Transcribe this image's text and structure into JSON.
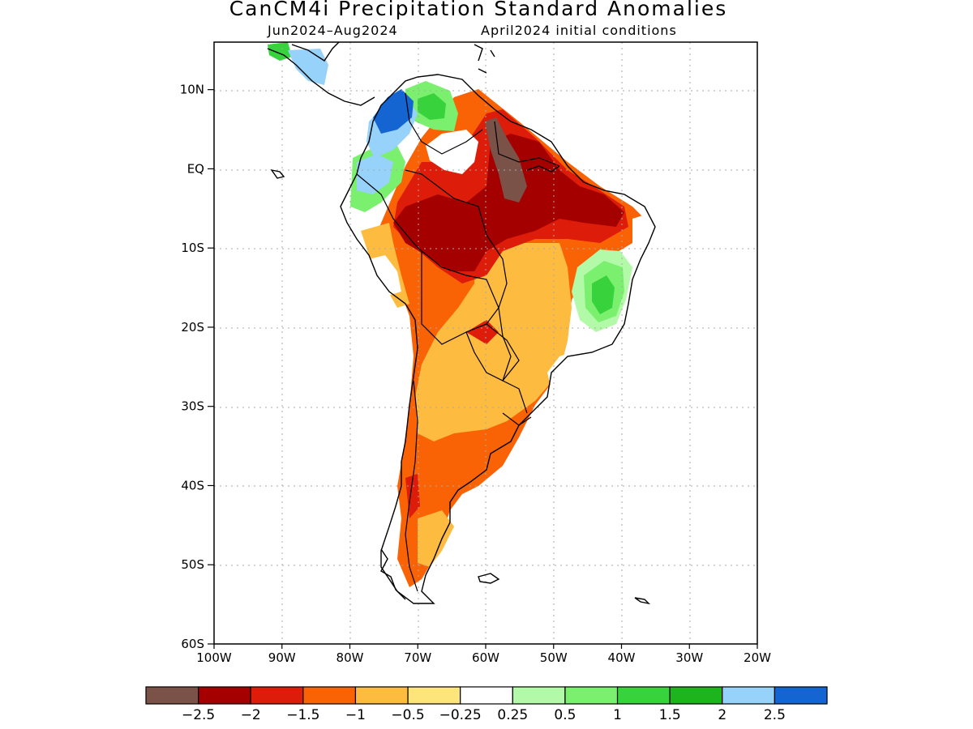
{
  "title": "CanCM4i Precipitation Standard Anomalies",
  "subtitle_left": "Jun2024–Aug2024",
  "subtitle_right": "April2024 initial conditions",
  "axes": {
    "lat_ticks": [
      {
        "value": 10,
        "label": "10N"
      },
      {
        "value": 0,
        "label": "EQ"
      },
      {
        "value": -10,
        "label": "10S"
      },
      {
        "value": -20,
        "label": "20S"
      },
      {
        "value": -30,
        "label": "30S"
      },
      {
        "value": -40,
        "label": "40S"
      },
      {
        "value": -50,
        "label": "50S"
      },
      {
        "value": -60,
        "label": "60S"
      }
    ],
    "lon_ticks": [
      {
        "value": -100,
        "label": "100W"
      },
      {
        "value": -90,
        "label": "90W"
      },
      {
        "value": -80,
        "label": "80W"
      },
      {
        "value": -70,
        "label": "70W"
      },
      {
        "value": -60,
        "label": "60W"
      },
      {
        "value": -50,
        "label": "50W"
      },
      {
        "value": -40,
        "label": "40W"
      },
      {
        "value": -30,
        "label": "30W"
      },
      {
        "value": -20,
        "label": "20W"
      }
    ],
    "lon_range": [
      -100,
      -20
    ],
    "lat_range": [
      -60,
      16
    ],
    "grid": true
  },
  "colorbar": {
    "colors": [
      "#7a5248",
      "#a50000",
      "#dd1c0a",
      "#fa6305",
      "#fdbb3f",
      "#fde57c",
      "#ffffff",
      "#b3faa8",
      "#7af06e",
      "#37d23c",
      "#1eb41e",
      "#96d2fa",
      "#1464d2"
    ],
    "labels": [
      "−2.5",
      "−2",
      "−1.5",
      "−1",
      "−0.5",
      "−0.25",
      "0.25",
      "0.5",
      "1",
      "1.5",
      "2",
      "2.5"
    ]
  }
}
